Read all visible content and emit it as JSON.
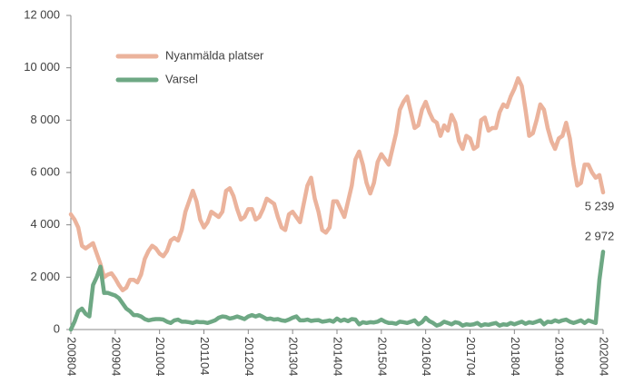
{
  "chart_data": {
    "type": "line",
    "categories": [
      "200804",
      null,
      null,
      null,
      null,
      null,
      null,
      null,
      null,
      null,
      null,
      null,
      "200904",
      null,
      null,
      null,
      null,
      null,
      null,
      null,
      null,
      null,
      null,
      null,
      "201004",
      null,
      null,
      null,
      null,
      null,
      null,
      null,
      null,
      null,
      null,
      null,
      "201104",
      null,
      null,
      null,
      null,
      null,
      null,
      null,
      null,
      null,
      null,
      null,
      "201204",
      null,
      null,
      null,
      null,
      null,
      null,
      null,
      null,
      null,
      null,
      null,
      "201304",
      null,
      null,
      null,
      null,
      null,
      null,
      null,
      null,
      null,
      null,
      null,
      "201404",
      null,
      null,
      null,
      null,
      null,
      null,
      null,
      null,
      null,
      null,
      null,
      "201504",
      null,
      null,
      null,
      null,
      null,
      null,
      null,
      null,
      null,
      null,
      null,
      "201604",
      null,
      null,
      null,
      null,
      null,
      null,
      null,
      null,
      null,
      null,
      null,
      "201704",
      null,
      null,
      null,
      null,
      null,
      null,
      null,
      null,
      null,
      null,
      null,
      "201804",
      null,
      null,
      null,
      null,
      null,
      null,
      null,
      null,
      null,
      null,
      null,
      "201904",
      null,
      null,
      null,
      null,
      null,
      null,
      null,
      null,
      null,
      null,
      null,
      "202004"
    ],
    "series": [
      {
        "name": "Nyanmälda platser",
        "color": "#ebb39c",
        "values": [
          4400,
          4200,
          3900,
          3200,
          3100,
          3200,
          3300,
          2900,
          2500,
          2000,
          2100,
          2150,
          1950,
          1700,
          1500,
          1600,
          1900,
          1900,
          1800,
          2100,
          2700,
          3000,
          3200,
          3100,
          2900,
          2800,
          3000,
          3400,
          3500,
          3400,
          3800,
          4500,
          4900,
          5300,
          4900,
          4200,
          3900,
          4100,
          4500,
          4400,
          4300,
          4500,
          5300,
          5400,
          5100,
          4600,
          4200,
          4300,
          4600,
          4600,
          4200,
          4300,
          4600,
          5000,
          4900,
          4800,
          4300,
          3900,
          3800,
          4400,
          4500,
          4300,
          4100,
          4800,
          5500,
          5800,
          5000,
          4500,
          3800,
          3700,
          3900,
          4900,
          4900,
          4600,
          4300,
          4900,
          5500,
          6500,
          6800,
          6300,
          5600,
          5200,
          5600,
          6400,
          6700,
          6500,
          6300,
          6900,
          7500,
          8400,
          8700,
          8900,
          8300,
          7700,
          7800,
          8400,
          8700,
          8300,
          8000,
          7900,
          7400,
          7800,
          7600,
          8200,
          7900,
          7200,
          6900,
          7400,
          7300,
          6900,
          7000,
          8000,
          8100,
          7600,
          7700,
          7700,
          8300,
          8600,
          8500,
          8900,
          9200,
          9600,
          9300,
          8400,
          7400,
          7500,
          8000,
          8600,
          8400,
          7700,
          7200,
          6900,
          7300,
          7400,
          7900,
          7300,
          6300,
          5500,
          5600,
          6300,
          6300,
          6000,
          5800,
          5900,
          5239
        ],
        "value_labels": [
          null,
          null,
          null,
          null,
          null,
          null,
          null,
          null,
          null,
          null,
          null,
          null,
          null,
          null,
          null,
          null,
          null,
          null,
          null,
          null,
          null,
          null,
          null,
          null,
          null,
          null,
          null,
          null,
          null,
          null,
          null,
          null,
          null,
          null,
          null,
          null,
          null,
          null,
          null,
          null,
          null,
          null,
          null,
          null,
          null,
          null,
          null,
          null,
          null,
          null,
          null,
          null,
          null,
          null,
          null,
          null,
          null,
          null,
          null,
          null,
          null,
          null,
          null,
          null,
          null,
          null,
          null,
          null,
          null,
          null,
          null,
          null,
          null,
          null,
          null,
          null,
          null,
          null,
          null,
          null,
          null,
          null,
          null,
          null,
          null,
          null,
          null,
          null,
          null,
          null,
          null,
          null,
          null,
          null,
          null,
          null,
          null,
          null,
          null,
          null,
          null,
          null,
          null,
          null,
          null,
          null,
          null,
          null,
          null,
          null,
          null,
          null,
          null,
          null,
          null,
          null,
          null,
          null,
          null,
          null,
          null,
          null,
          null,
          null,
          null,
          null,
          null,
          null,
          null,
          null,
          null,
          null,
          null,
          null,
          null,
          null,
          null,
          null,
          null,
          null,
          null,
          null,
          null,
          null,
          "5 239"
        ]
      },
      {
        "name": "Varsel",
        "color": "#6ea884",
        "values": [
          0,
          300,
          700,
          800,
          600,
          500,
          1700,
          2000,
          2400,
          1400,
          1400,
          1350,
          1300,
          1200,
          1000,
          800,
          700,
          550,
          550,
          500,
          400,
          350,
          380,
          400,
          400,
          380,
          300,
          250,
          350,
          380,
          300,
          300,
          280,
          250,
          300,
          280,
          280,
          250,
          300,
          350,
          450,
          500,
          480,
          420,
          450,
          500,
          450,
          400,
          500,
          550,
          500,
          550,
          480,
          400,
          420,
          380,
          400,
          350,
          330,
          380,
          450,
          500,
          350,
          350,
          380,
          330,
          350,
          360,
          300,
          320,
          350,
          300,
          420,
          330,
          380,
          320,
          400,
          380,
          200,
          280,
          250,
          280,
          270,
          300,
          380,
          300,
          250,
          250,
          220,
          300,
          280,
          250,
          300,
          350,
          200,
          280,
          450,
          320,
          250,
          150,
          200,
          300,
          250,
          200,
          280,
          250,
          150,
          200,
          180,
          200,
          250,
          150,
          200,
          180,
          220,
          250,
          150,
          200,
          180,
          250,
          200,
          250,
          300,
          220,
          280,
          250,
          300,
          350,
          200,
          300,
          280,
          350,
          300,
          350,
          380,
          300,
          250,
          300,
          350,
          250,
          350,
          300,
          250,
          1900,
          2972
        ],
        "value_labels": [
          null,
          null,
          null,
          null,
          null,
          null,
          null,
          null,
          null,
          null,
          null,
          null,
          null,
          null,
          null,
          null,
          null,
          null,
          null,
          null,
          null,
          null,
          null,
          null,
          null,
          null,
          null,
          null,
          null,
          null,
          null,
          null,
          null,
          null,
          null,
          null,
          null,
          null,
          null,
          null,
          null,
          null,
          null,
          null,
          null,
          null,
          null,
          null,
          null,
          null,
          null,
          null,
          null,
          null,
          null,
          null,
          null,
          null,
          null,
          null,
          null,
          null,
          null,
          null,
          null,
          null,
          null,
          null,
          null,
          null,
          null,
          null,
          null,
          null,
          null,
          null,
          null,
          null,
          null,
          null,
          null,
          null,
          null,
          null,
          null,
          null,
          null,
          null,
          null,
          null,
          null,
          null,
          null,
          null,
          null,
          null,
          null,
          null,
          null,
          null,
          null,
          null,
          null,
          null,
          null,
          null,
          null,
          null,
          null,
          null,
          null,
          null,
          null,
          null,
          null,
          null,
          null,
          null,
          null,
          null,
          null,
          null,
          null,
          null,
          null,
          null,
          null,
          null,
          null,
          null,
          null,
          null,
          null,
          null,
          null,
          null,
          null,
          null,
          null,
          null,
          null,
          null,
          null,
          null,
          "2 972"
        ]
      }
    ],
    "ylim": [
      0,
      12000
    ],
    "yticks": [
      0,
      {
        "value": 2000,
        "label": "2 000"
      },
      {
        "value": 4000,
        "label": "4 000"
      },
      {
        "value": 6000,
        "label": "6 000"
      },
      {
        "value": 8000,
        "label": "8 000"
      },
      {
        "value": 10000,
        "label": "10 000"
      },
      {
        "value": 12000,
        "label": "12 000"
      }
    ],
    "grid": false,
    "legend": "upper left"
  }
}
